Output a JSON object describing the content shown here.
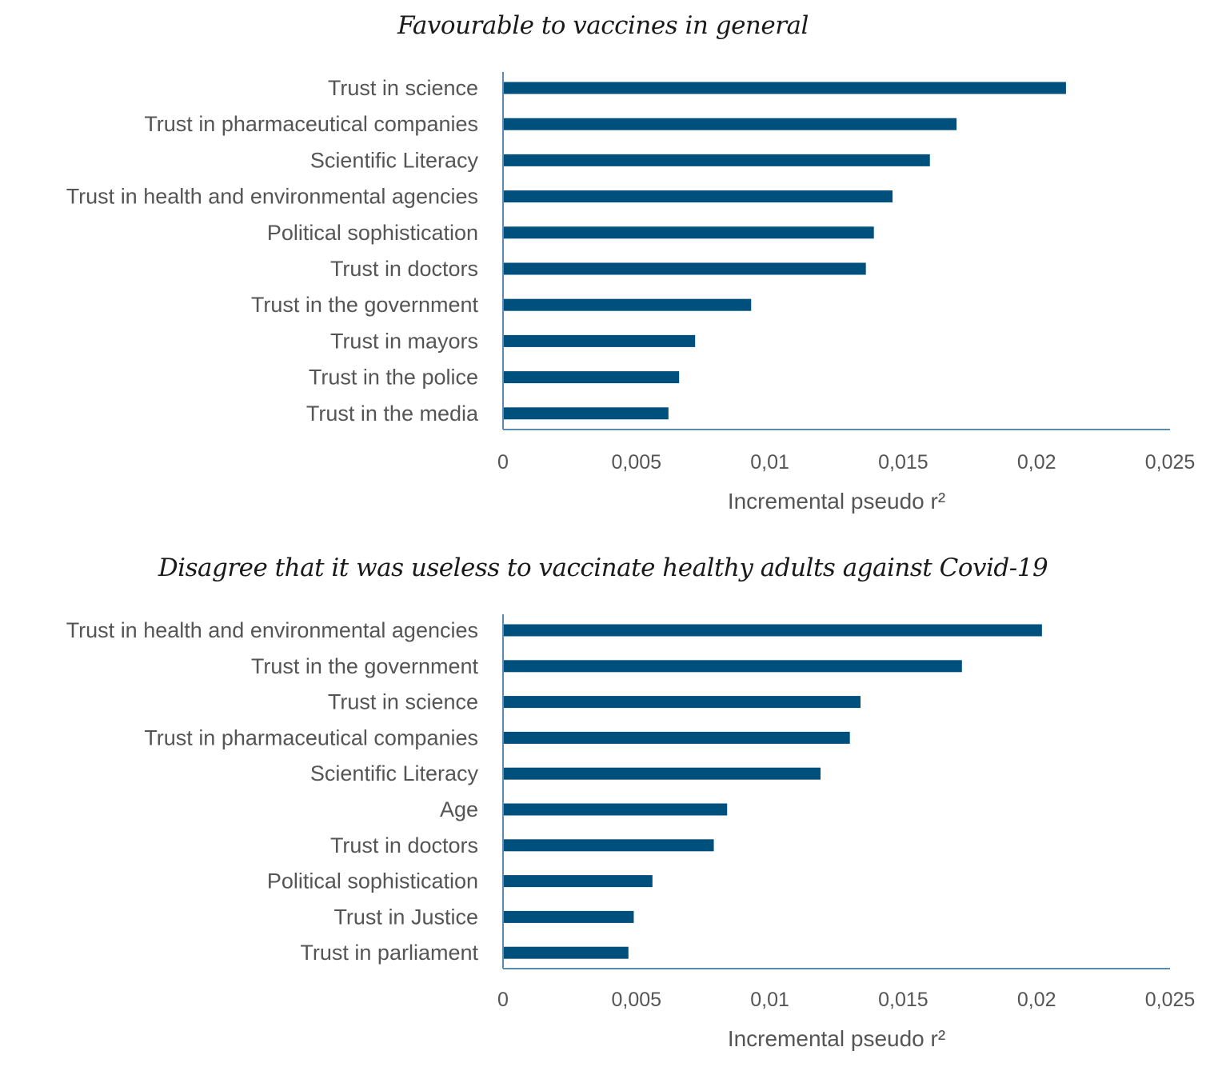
{
  "chart_data": [
    {
      "type": "bar",
      "orientation": "horizontal",
      "title": "Favourable to vaccines in general",
      "xlabel": "Incremental pseudo r²",
      "ylabel": "",
      "xlim": [
        0,
        0.025
      ],
      "xticks": [
        0,
        0.005,
        0.01,
        0.015,
        0.02,
        0.025
      ],
      "xtick_labels": [
        "0",
        "0,005",
        "0,01",
        "0,015",
        "0,02",
        "0,025"
      ],
      "grid": false,
      "color": "#00507D",
      "categories": [
        "Trust in science",
        "Trust in pharmaceutical companies",
        "Scientific Literacy",
        "Trust in health and environmental agencies",
        "Political sophistication",
        "Trust in doctors",
        "Trust in the government",
        "Trust in mayors",
        "Trust in the police",
        "Trust in the media"
      ],
      "values": [
        0.0211,
        0.017,
        0.016,
        0.0146,
        0.0139,
        0.0136,
        0.0093,
        0.0072,
        0.0066,
        0.0062
      ]
    },
    {
      "type": "bar",
      "orientation": "horizontal",
      "title": "Disagree that it  was useless to vaccinate healthy adults against Covid-19",
      "xlabel": "Incremental pseudo r²",
      "ylabel": "",
      "xlim": [
        0,
        0.025
      ],
      "xticks": [
        0,
        0.005,
        0.01,
        0.015,
        0.02,
        0.025
      ],
      "xtick_labels": [
        "0",
        "0,005",
        "0,01",
        "0,015",
        "0,02",
        "0,025"
      ],
      "grid": false,
      "color": "#00507D",
      "categories": [
        "Trust in health and environmental agencies",
        "Trust in the government",
        "Trust in science",
        "Trust in pharmaceutical companies",
        "Scientific Literacy",
        "Age",
        "Trust in doctors",
        "Political sophistication",
        "Trust in Justice",
        "Trust in parliament"
      ],
      "values": [
        0.0202,
        0.0172,
        0.0134,
        0.013,
        0.0119,
        0.0084,
        0.0079,
        0.0056,
        0.0049,
        0.0047
      ]
    }
  ]
}
